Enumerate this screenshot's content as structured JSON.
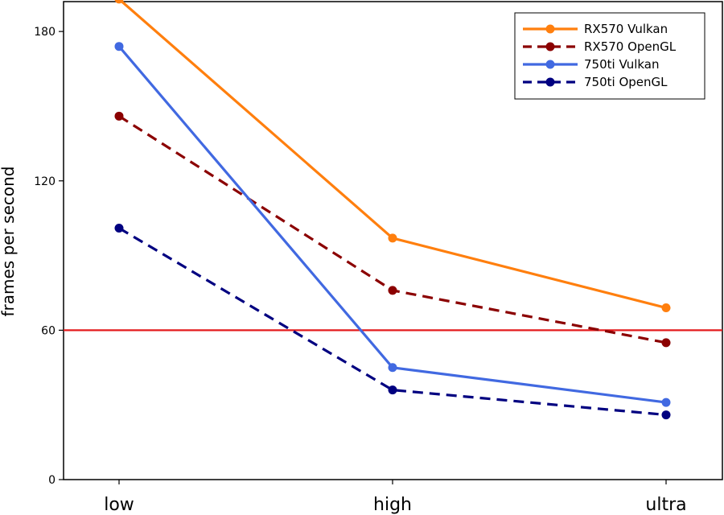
{
  "chart_data": {
    "type": "line",
    "categories": [
      "low",
      "high",
      "ultra"
    ],
    "ylabel": "frames per second",
    "xlabel": "",
    "title": "",
    "ylim": [
      0,
      192
    ],
    "yticks": [
      0,
      60,
      120,
      180
    ],
    "grid": false,
    "legend_position": "top-right",
    "reference_line": {
      "value": 60,
      "color": "#e41a1c"
    },
    "series": [
      {
        "name": "RX570 Vulkan",
        "values": [
          193,
          97,
          69
        ],
        "color": "#ff7f0e",
        "dash": "solid"
      },
      {
        "name": "RX570 OpenGL",
        "values": [
          146,
          76,
          55
        ],
        "color": "#8b0000",
        "dash": "dashed"
      },
      {
        "name": "750ti Vulkan",
        "values": [
          174,
          45,
          31
        ],
        "color": "#4169e1",
        "dash": "solid"
      },
      {
        "name": "750ti OpenGL",
        "values": [
          101,
          36,
          26
        ],
        "color": "#000080",
        "dash": "dashed"
      }
    ]
  }
}
